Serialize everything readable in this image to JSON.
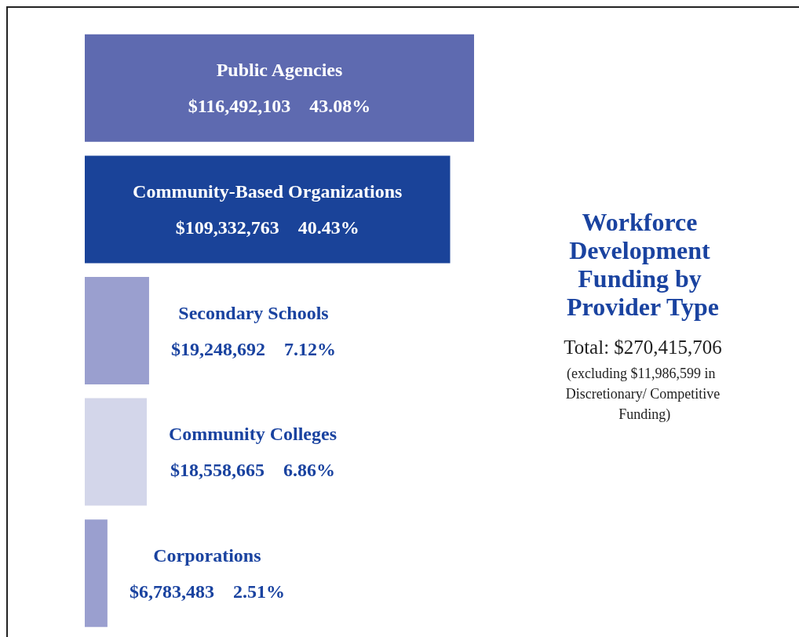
{
  "chart_data": {
    "type": "bar",
    "orientation": "horizontal",
    "title": "Workforce Development Funding by Provider Type",
    "subtitle": "Total: $270,415,706",
    "annotations": [
      "(excluding $11,986,599 in Discretionary/ Competitive Funding)"
    ],
    "categories": [
      "Public Agencies",
      "Community-Based Organizations",
      "Secondary Schools",
      "Community Colleges",
      "Corporations"
    ],
    "values": [
      116492103,
      109332763,
      19248692,
      18558665,
      6783483
    ],
    "colors": [
      "#5e6ab0",
      "#1a4399",
      "#9a9fcf",
      "#d3d6ea",
      "#9a9fcf"
    ],
    "value_labels": [
      "$116,492,103    43.08%",
      "$109,332,763    40.43%",
      "$19,248,692    7.12%",
      "$18,558,665    6.86%",
      "$6,783,483    2.51%"
    ]
  }
}
